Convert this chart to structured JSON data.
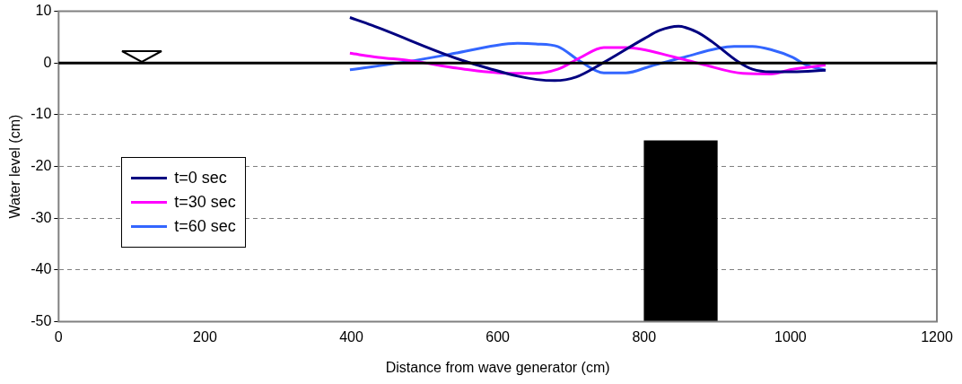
{
  "chart_data": {
    "type": "line",
    "xlabel": "Distance from wave generator (cm)",
    "ylabel": "Water level (cm)",
    "xlim": [
      0,
      1200
    ],
    "xticks": [
      0,
      200,
      400,
      600,
      800,
      1000,
      1200
    ],
    "ylim": [
      -50,
      10
    ],
    "yticks": [
      -50,
      -40,
      -30,
      -20,
      -10,
      0,
      10
    ],
    "grid": "y",
    "legend": "left",
    "marker": "none",
    "line_style": "solid",
    "ref_lines": [
      {
        "axis": "y",
        "value": 0,
        "color": "#000000"
      }
    ],
    "series": [
      {
        "name": "t=0 sec",
        "color": "#000080",
        "x": [
          398,
          428,
          563,
          678,
          707,
          741,
          800,
          821,
          847,
          872,
          893,
          927,
          948,
          973,
          1003,
          1048
        ],
        "values": [
          8.8,
          7.3,
          0,
          -3.4,
          -2.7,
          -0.2,
          4.7,
          6.3,
          7.1,
          6,
          4.1,
          0.4,
          -1.2,
          -1.7,
          -1.7,
          -1.4
        ]
      },
      {
        "name": "t=30 sec",
        "color": "#ff00ff",
        "x": [
          398,
          437,
          479,
          555,
          618,
          648,
          682,
          712,
          745,
          775,
          843,
          881,
          935,
          973,
          1003,
          1048
        ],
        "values": [
          1.9,
          1.1,
          0.5,
          -1.2,
          -2,
          -2,
          -1.2,
          1,
          3,
          3,
          1.1,
          -0.3,
          -2,
          -2.1,
          -1.2,
          -0.4
        ]
      },
      {
        "name": "t=60 sec",
        "color": "#3366ff",
        "x": [
          398,
          487,
          542,
          597,
          627,
          652,
          682,
          712,
          745,
          775,
          809,
          851,
          923,
          948,
          973,
          1003,
          1020,
          1048
        ],
        "values": [
          -1.3,
          0.5,
          1.9,
          3.4,
          3.8,
          3.7,
          3.2,
          0.4,
          -1.9,
          -1.9,
          -0.6,
          1,
          3.2,
          3.2,
          2.6,
          1.1,
          -0.3,
          -1.4
        ]
      },
      {
        "type": "bar",
        "color": "#000000",
        "x": [
          850
        ],
        "base": [
          -50
        ],
        "values": [
          35
        ]
      }
    ]
  }
}
